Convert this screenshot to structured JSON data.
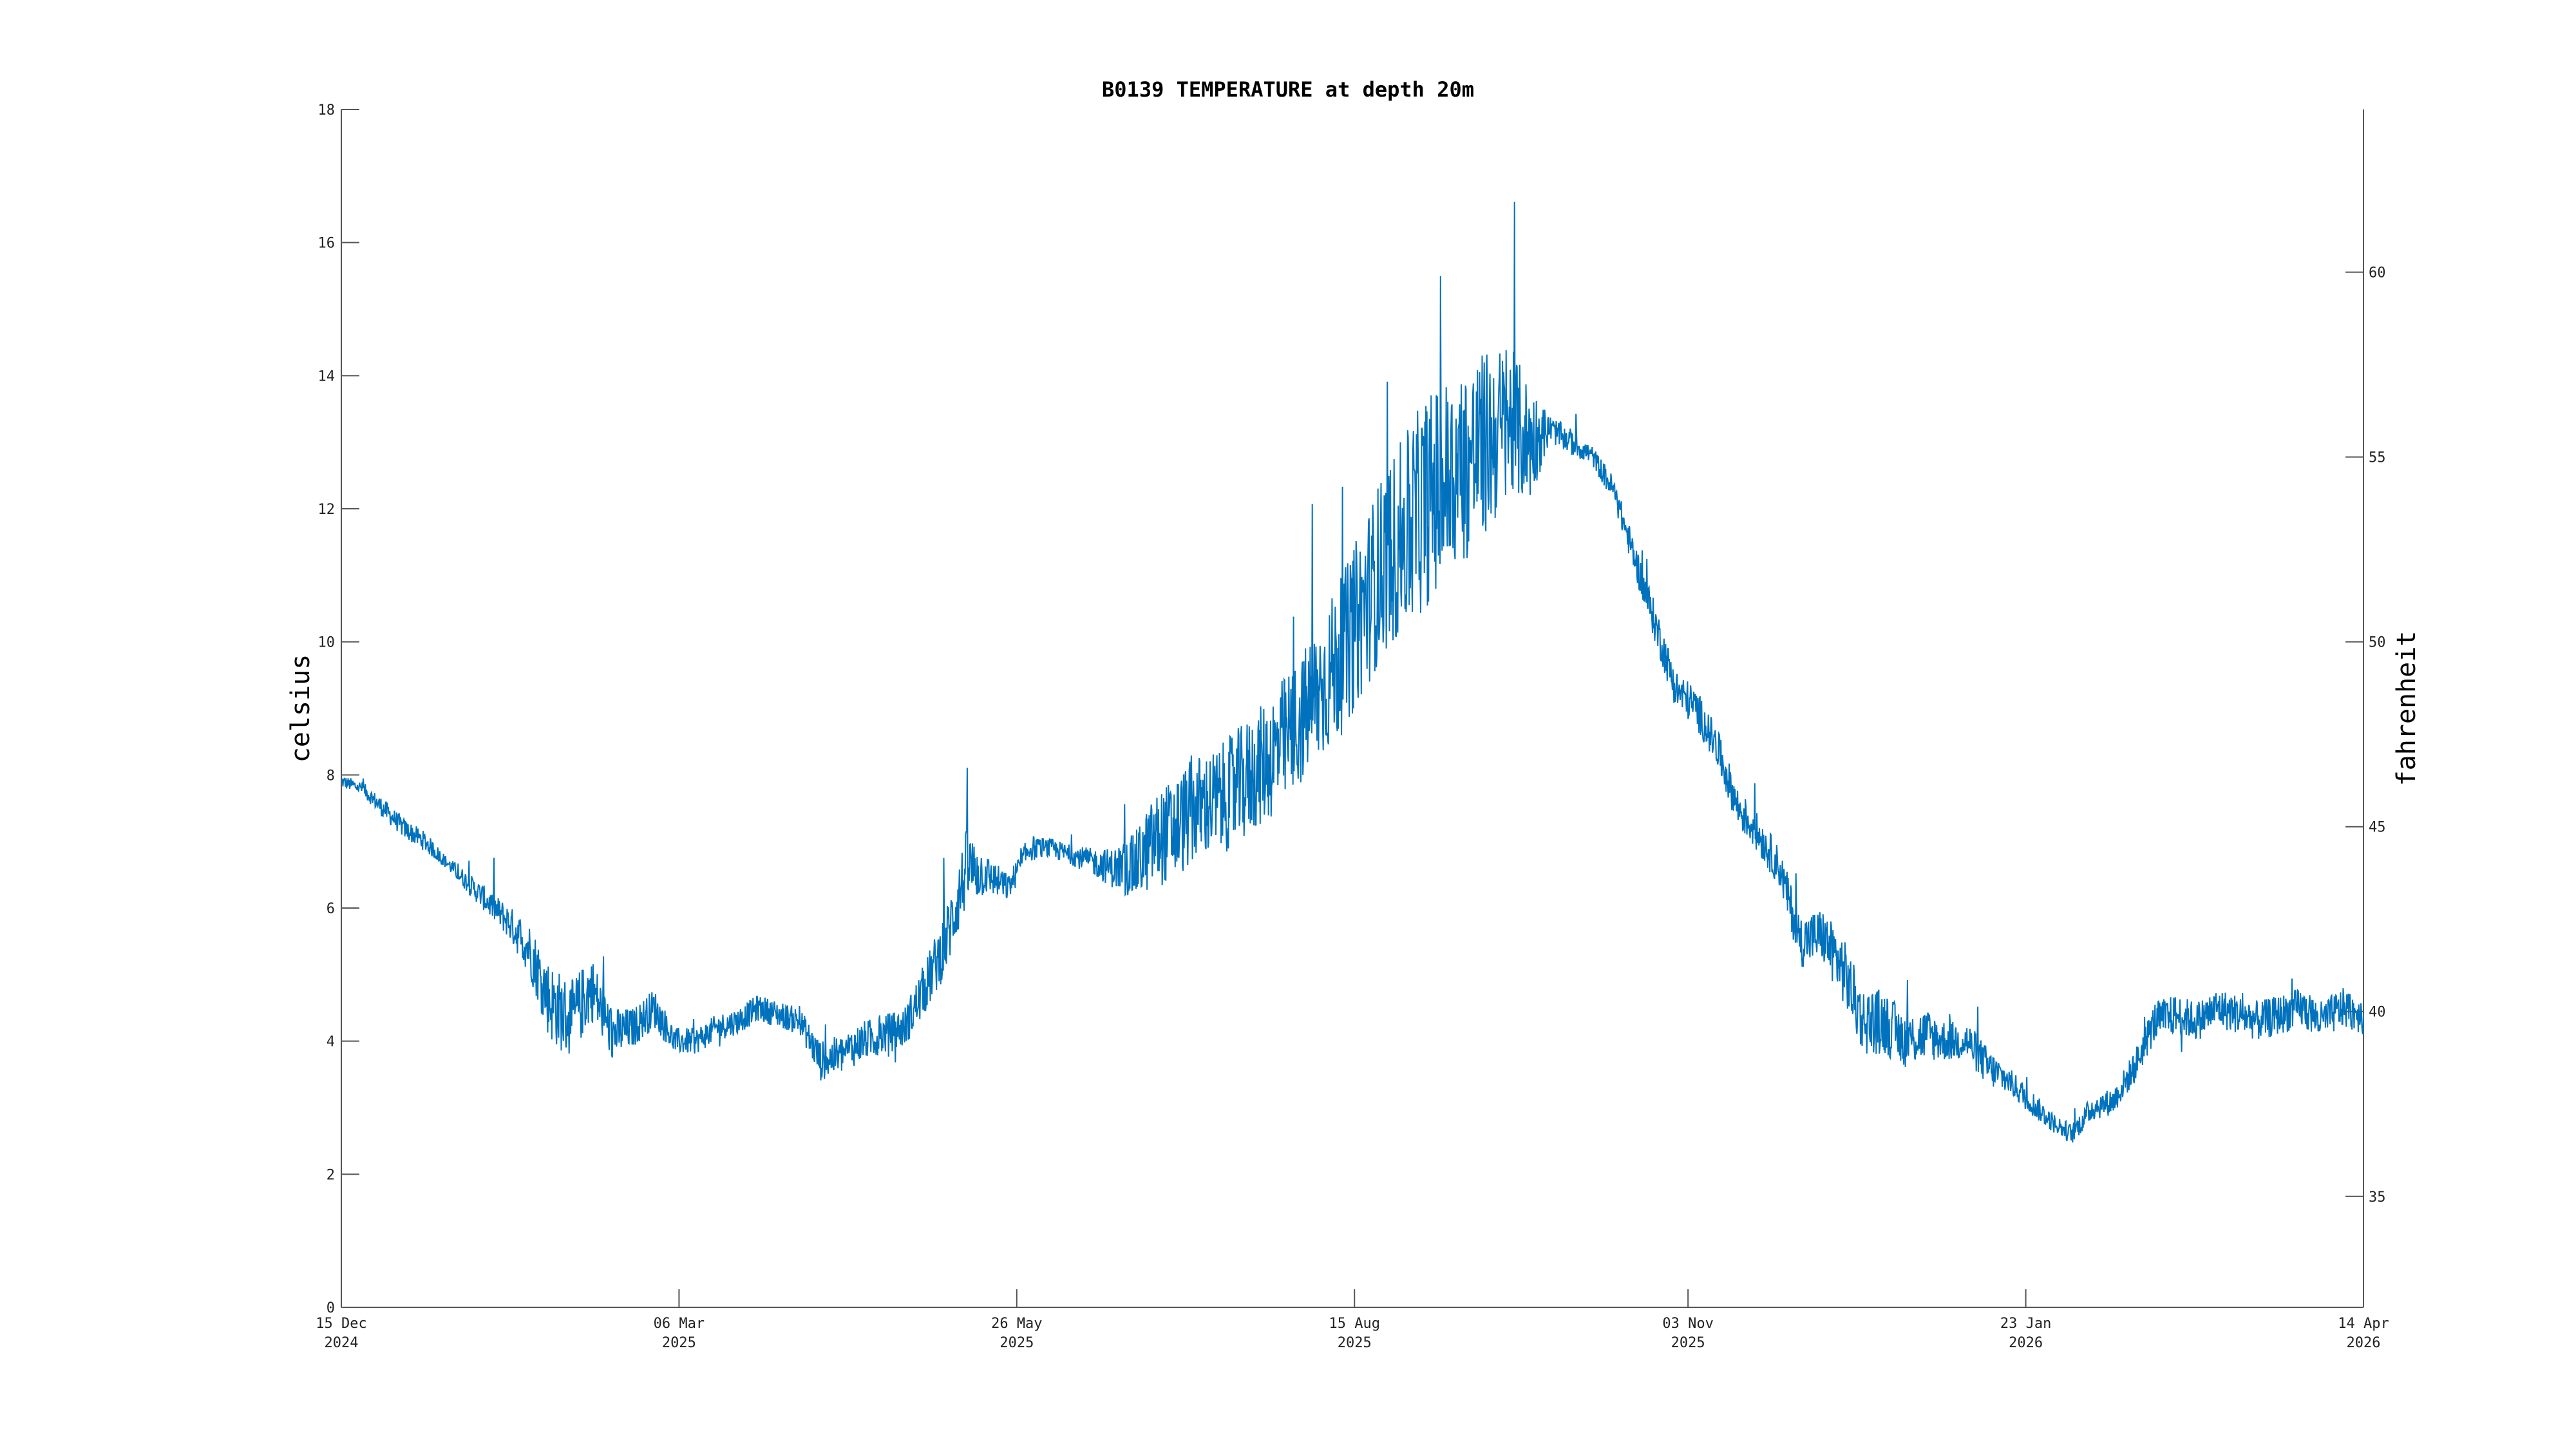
{
  "chart_data": {
    "type": "line",
    "title": "B0139 TEMPERATURE at depth 20m",
    "ylabel": "celsius",
    "ylabel_right": "fahrenheit",
    "xlabel": "",
    "ylim": [
      0,
      18
    ],
    "ylim_right": [
      32,
      64.4
    ],
    "xlim": [
      "2024-12-15",
      "2026-04-14"
    ],
    "grid": false,
    "legend": "none",
    "y_ticks": [
      "0",
      "2",
      "4",
      "6",
      "8",
      "10",
      "12",
      "14",
      "16",
      "18"
    ],
    "y_ticks_right": [
      "35",
      "40",
      "45",
      "50",
      "55",
      "60"
    ],
    "x_ticks": [
      {
        "date": "2024-12-15",
        "label": "15 Dec",
        "year": "2024"
      },
      {
        "date": "2025-03-06",
        "label": "06 Mar",
        "year": "2025"
      },
      {
        "date": "2025-05-26",
        "label": "26 May",
        "year": "2025"
      },
      {
        "date": "2025-08-15",
        "label": "15 Aug",
        "year": "2025"
      },
      {
        "date": "2025-11-03",
        "label": "03 Nov",
        "year": "2025"
      },
      {
        "date": "2026-01-23",
        "label": "23 Jan",
        "year": "2026"
      },
      {
        "date": "2026-04-14",
        "label": "14 Apr",
        "year": "2026"
      }
    ],
    "series": [
      {
        "color": "#0072bd",
        "x": [
          "2024-12-15",
          "2024-12-20",
          "2024-12-25",
          "2024-12-30",
          "2025-01-04",
          "2025-01-09",
          "2025-01-14",
          "2025-01-19",
          "2025-01-24",
          "2025-01-29",
          "2025-02-03",
          "2025-02-08",
          "2025-02-13",
          "2025-02-18",
          "2025-02-23",
          "2025-02-28",
          "2025-03-05",
          "2025-03-10",
          "2025-03-15",
          "2025-03-20",
          "2025-03-25",
          "2025-03-30",
          "2025-04-04",
          "2025-04-09",
          "2025-04-14",
          "2025-04-19",
          "2025-04-24",
          "2025-04-29",
          "2025-05-04",
          "2025-05-09",
          "2025-05-14",
          "2025-05-19",
          "2025-05-24",
          "2025-05-29",
          "2025-06-03",
          "2025-06-08",
          "2025-06-13",
          "2025-06-18",
          "2025-06-23",
          "2025-06-28",
          "2025-07-03",
          "2025-07-08",
          "2025-07-13",
          "2025-07-18",
          "2025-07-23",
          "2025-07-28",
          "2025-08-02",
          "2025-08-07",
          "2025-08-12",
          "2025-08-17",
          "2025-08-22",
          "2025-08-27",
          "2025-09-01",
          "2025-09-06",
          "2025-09-11",
          "2025-09-16",
          "2025-09-21",
          "2025-09-26",
          "2025-10-01",
          "2025-10-06",
          "2025-10-11",
          "2025-10-16",
          "2025-10-21",
          "2025-10-26",
          "2025-10-31",
          "2025-11-05",
          "2025-11-10",
          "2025-11-15",
          "2025-11-20",
          "2025-11-25",
          "2025-11-30",
          "2025-12-05",
          "2025-12-10",
          "2025-12-15",
          "2025-12-20",
          "2025-12-25",
          "2025-12-30",
          "2026-01-04",
          "2026-01-09",
          "2026-01-14",
          "2026-01-19",
          "2026-01-24",
          "2026-01-29",
          "2026-02-03",
          "2026-02-08",
          "2026-02-13",
          "2026-02-18",
          "2026-02-23",
          "2026-02-28",
          "2026-03-05",
          "2026-03-10",
          "2026-03-15",
          "2026-03-20",
          "2026-03-25",
          "2026-03-30",
          "2026-04-04",
          "2026-04-09",
          "2026-04-14"
        ],
        "y": [
          7.9,
          7.8,
          7.5,
          7.2,
          7.0,
          6.7,
          6.4,
          6.1,
          5.8,
          5.4,
          4.6,
          4.3,
          4.8,
          4.1,
          4.2,
          4.5,
          4.0,
          4.0,
          4.2,
          4.3,
          4.5,
          4.4,
          4.3,
          3.7,
          3.8,
          4.0,
          4.1,
          4.2,
          4.8,
          5.5,
          6.6,
          6.5,
          6.3,
          6.9,
          6.9,
          6.8,
          6.7,
          6.6,
          6.6,
          7.0,
          7.2,
          7.5,
          7.6,
          7.8,
          8.1,
          8.4,
          8.8,
          9.3,
          9.8,
          10.5,
          11.2,
          11.6,
          12.1,
          12.4,
          12.7,
          13.0,
          13.3,
          13.0,
          13.2,
          13.0,
          12.8,
          12.3,
          11.3,
          10.3,
          9.3,
          9.0,
          8.4,
          7.5,
          7.1,
          6.6,
          5.5,
          5.6,
          5.1,
          4.3,
          4.3,
          4.0,
          4.1,
          4.0,
          4.0,
          3.6,
          3.4,
          3.1,
          2.8,
          2.6,
          3.0,
          3.1,
          3.6,
          4.3,
          4.4,
          4.3,
          4.5,
          4.4,
          4.3,
          4.4,
          4.5,
          4.3,
          4.5,
          4.4
        ],
        "noise": [
          0.1,
          0.1,
          0.15,
          0.15,
          0.15,
          0.1,
          0.15,
          0.2,
          0.25,
          0.4,
          0.6,
          0.6,
          0.5,
          0.4,
          0.3,
          0.3,
          0.2,
          0.2,
          0.2,
          0.2,
          0.2,
          0.2,
          0.2,
          0.3,
          0.3,
          0.3,
          0.3,
          0.3,
          0.4,
          0.5,
          0.6,
          0.3,
          0.2,
          0.2,
          0.15,
          0.15,
          0.2,
          0.3,
          0.5,
          0.7,
          0.8,
          0.8,
          0.8,
          0.9,
          0.9,
          1.0,
          1.0,
          1.1,
          1.2,
          1.3,
          1.4,
          1.5,
          1.6,
          1.6,
          1.5,
          1.4,
          1.2,
          0.9,
          0.2,
          0.2,
          0.15,
          0.2,
          0.25,
          0.3,
          0.3,
          0.3,
          0.3,
          0.3,
          0.3,
          0.3,
          0.4,
          0.4,
          0.5,
          0.5,
          0.5,
          0.4,
          0.4,
          0.3,
          0.3,
          0.3,
          0.2,
          0.2,
          0.15,
          0.15,
          0.2,
          0.2,
          0.25,
          0.3,
          0.3,
          0.3,
          0.3,
          0.3,
          0.3,
          0.3,
          0.3,
          0.3,
          0.3,
          0.3
        ]
      }
    ]
  }
}
